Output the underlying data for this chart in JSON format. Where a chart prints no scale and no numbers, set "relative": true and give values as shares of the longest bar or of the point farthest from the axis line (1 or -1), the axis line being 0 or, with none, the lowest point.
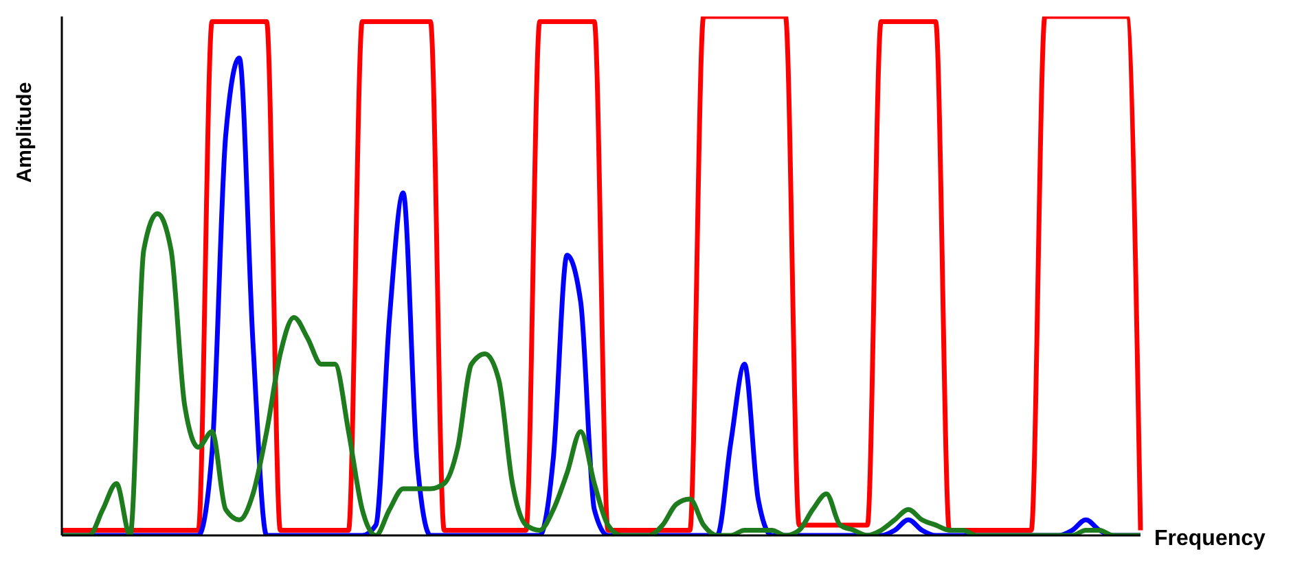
{
  "chart_data": {
    "type": "line",
    "relative": true,
    "xlabel": "Frequency",
    "ylabel": "Amplitude",
    "grid": false,
    "legend": false,
    "marker": "none",
    "line_style": "solid",
    "categories": [
      null,
      null,
      null,
      null,
      null,
      null,
      null,
      null,
      null,
      null,
      null,
      null,
      null,
      null,
      null,
      null,
      null,
      null,
      null,
      null,
      null,
      null,
      null,
      null,
      null,
      null,
      null,
      null,
      null,
      null,
      null,
      null,
      null,
      null,
      null,
      null,
      null,
      null,
      null,
      null,
      null,
      null,
      null,
      null,
      null,
      null,
      null,
      null,
      null,
      null,
      null,
      null,
      null,
      null,
      null,
      null,
      null,
      null,
      null,
      null,
      null,
      null,
      null,
      null,
      null,
      null,
      null,
      null,
      null,
      null,
      null,
      null,
      null,
      null,
      null,
      null,
      null,
      null,
      null,
      null
    ],
    "series": [
      {
        "color": "#ff0000",
        "values": [
          0.01,
          0.01,
          0.01,
          0.01,
          0.01,
          0.01,
          0.01,
          0.01,
          0.01,
          0.01,
          0.01,
          0.99,
          0.99,
          0.99,
          0.99,
          0.99,
          0.01,
          0.01,
          0.01,
          0.01,
          0.01,
          0.01,
          0.99,
          0.99,
          0.99,
          0.99,
          0.99,
          0.99,
          0.01,
          0.01,
          0.01,
          0.01,
          0.01,
          0.01,
          0.01,
          0.99,
          0.99,
          0.99,
          0.99,
          0.99,
          0.01,
          0.01,
          0.01,
          0.01,
          0.01,
          0.01,
          0.01,
          1,
          1,
          1,
          1,
          1,
          1,
          1,
          0.02,
          0.02,
          0.02,
          0.02,
          0.02,
          0.02,
          0.99,
          0.99,
          0.99,
          0.99,
          0.99,
          0.01,
          0.01,
          0.01,
          0.01,
          0.01,
          0.01,
          0.01,
          1,
          1,
          1,
          1,
          1,
          1,
          1,
          0.01
        ]
      },
      {
        "color": "#0000ff",
        "values": [
          0,
          0,
          0,
          0,
          0,
          0,
          0,
          0,
          0,
          0,
          0,
          0.16,
          0.77,
          0.92,
          0.37,
          0,
          0,
          0,
          0,
          0,
          0,
          0,
          0,
          0.02,
          0.42,
          0.66,
          0.15,
          0,
          0,
          0,
          0,
          0,
          0,
          0,
          0,
          0,
          0.15,
          0.54,
          0.45,
          0.05,
          0,
          0,
          0,
          0,
          0,
          0,
          0,
          0,
          0,
          0.18,
          0.33,
          0.07,
          0,
          0,
          0,
          0,
          0,
          0,
          0,
          0,
          0,
          0.01,
          0.03,
          0.01,
          0,
          0,
          0,
          0,
          0,
          0,
          0,
          0,
          0,
          0,
          0.01,
          0.03,
          0.01,
          0,
          0,
          0
        ]
      },
      {
        "color": "#1e7b1e",
        "values": [
          0,
          0,
          0,
          0.05,
          0.1,
          0,
          0.55,
          0.62,
          0.55,
          0.25,
          0.17,
          0.2,
          0.05,
          0.03,
          0.08,
          0.2,
          0.35,
          0.42,
          0.38,
          0.33,
          0.33,
          0.2,
          0.05,
          0,
          0.05,
          0.09,
          0.09,
          0.09,
          0.1,
          0.17,
          0.33,
          0.35,
          0.3,
          0.1,
          0.02,
          0.01,
          0.05,
          0.12,
          0.2,
          0.1,
          0.02,
          0,
          0,
          0,
          0.02,
          0.06,
          0.07,
          0.02,
          0,
          0,
          0.01,
          0.01,
          0.01,
          0,
          0.01,
          0.05,
          0.08,
          0.02,
          0.01,
          0,
          0.01,
          0.03,
          0.05,
          0.03,
          0.02,
          0.01,
          0.01,
          0,
          0,
          0,
          0,
          0,
          0,
          0,
          0,
          0.01,
          0.01,
          0,
          0,
          0
        ]
      }
    ]
  }
}
